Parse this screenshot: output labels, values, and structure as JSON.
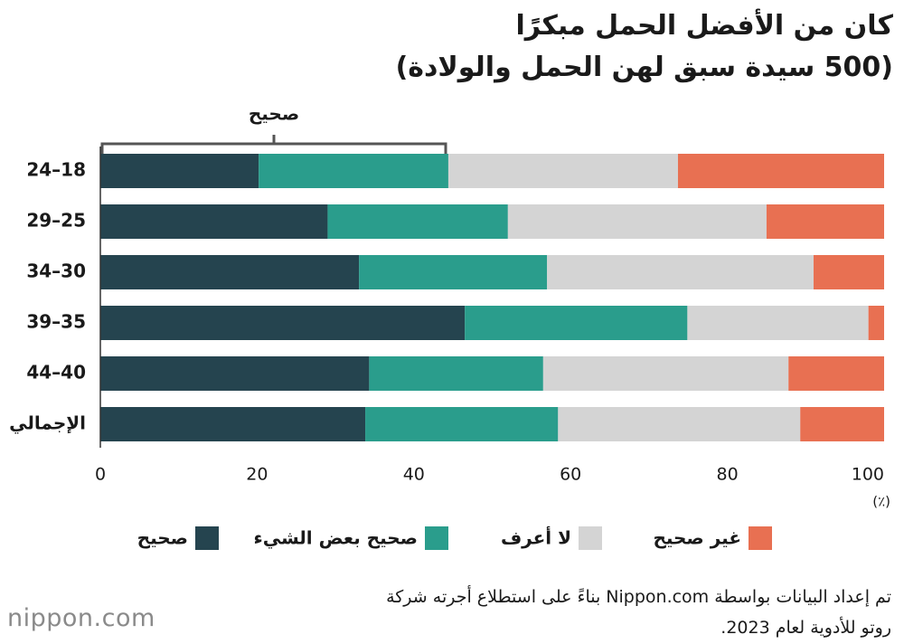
{
  "chart_data": {
    "type": "stacked-barh",
    "title": "كان من الأفضل الحمل مبكرًا",
    "subtitle": "(500 سيدة سبق لهن الحمل والولادة)",
    "annotation": "صحيح",
    "unit_label": "(٪)",
    "categories": [
      "24–18",
      "29–25",
      "34–30",
      "39–35",
      "44–40",
      "الإجمالي"
    ],
    "series": [
      {
        "name": "صحيح",
        "color": "#25444f",
        "values": [
          20.2,
          29.0,
          33.0,
          46.5,
          34.3,
          33.8
        ]
      },
      {
        "name": "صحيح بعض الشيء",
        "color": "#2a9d8c",
        "values": [
          24.2,
          23.0,
          24.0,
          28.4,
          22.2,
          24.6
        ]
      },
      {
        "name": "لا أعرف",
        "color": "#d4d4d4",
        "values": [
          29.3,
          33.0,
          34.0,
          23.1,
          31.3,
          30.9
        ]
      },
      {
        "name": "غير صحيح",
        "color": "#e87052",
        "values": [
          26.3,
          15.0,
          9.0,
          2.0,
          12.2,
          10.7
        ]
      }
    ],
    "xlim": [
      0,
      100
    ],
    "xticks": [
      0,
      20,
      40,
      60,
      80,
      100
    ],
    "source": [
      "تم إعداد البيانات بواسطة Nippon.com بناءً على استطلاع أجرته شركة",
      "روتو للأدوية لعام 2023."
    ],
    "logo": "nippon.com"
  }
}
